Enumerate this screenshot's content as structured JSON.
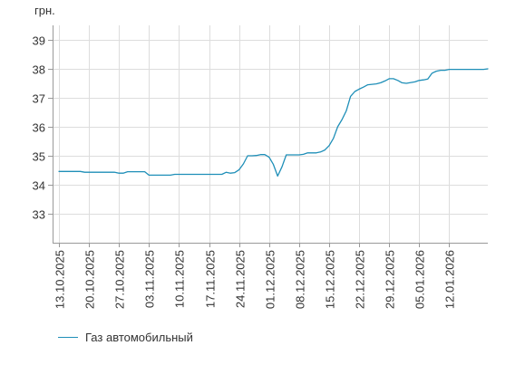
{
  "chart_data": {
    "type": "line",
    "unit_label": "грн.",
    "ylim": [
      32,
      39.5
    ],
    "yticks": [
      33,
      34,
      35,
      36,
      37,
      38,
      39
    ],
    "grid": true,
    "legend_position": "bottom-left",
    "series": [
      {
        "name": "Газ автомобильный",
        "color": "#1f8fb8",
        "points": [
          [
            "2025-10-13",
            34.46
          ],
          [
            "2025-10-18",
            34.46
          ],
          [
            "2025-10-19",
            34.43
          ],
          [
            "2025-10-26",
            34.43
          ],
          [
            "2025-10-27",
            34.4
          ],
          [
            "2025-10-28",
            34.4
          ],
          [
            "2025-10-29",
            34.45
          ],
          [
            "2025-11-02",
            34.45
          ],
          [
            "2025-11-03",
            34.33
          ],
          [
            "2025-11-08",
            34.33
          ],
          [
            "2025-11-09",
            34.36
          ],
          [
            "2025-11-20",
            34.36
          ],
          [
            "2025-11-21",
            34.43
          ],
          [
            "2025-11-22",
            34.4
          ],
          [
            "2025-11-23",
            34.42
          ],
          [
            "2025-11-24",
            34.52
          ],
          [
            "2025-11-25",
            34.72
          ],
          [
            "2025-11-26",
            35.0
          ],
          [
            "2025-11-27",
            35.0
          ],
          [
            "2025-11-28",
            35.01
          ],
          [
            "2025-11-29",
            35.04
          ],
          [
            "2025-11-30",
            35.04
          ],
          [
            "2025-12-01",
            34.95
          ],
          [
            "2025-12-02",
            34.7
          ],
          [
            "2025-12-03",
            34.3
          ],
          [
            "2025-12-04",
            34.62
          ],
          [
            "2025-12-05",
            35.03
          ],
          [
            "2025-12-08",
            35.03
          ],
          [
            "2025-12-09",
            35.05
          ],
          [
            "2025-12-10",
            35.1
          ],
          [
            "2025-12-12",
            35.1
          ],
          [
            "2025-12-13",
            35.13
          ],
          [
            "2025-12-14",
            35.2
          ],
          [
            "2025-12-15",
            35.35
          ],
          [
            "2025-12-16",
            35.6
          ],
          [
            "2025-12-17",
            36.0
          ],
          [
            "2025-12-18",
            36.25
          ],
          [
            "2025-12-19",
            36.55
          ],
          [
            "2025-12-20",
            37.05
          ],
          [
            "2025-12-21",
            37.22
          ],
          [
            "2025-12-22",
            37.3
          ],
          [
            "2025-12-23",
            37.37
          ],
          [
            "2025-12-24",
            37.45
          ],
          [
            "2025-12-26",
            37.48
          ],
          [
            "2025-12-27",
            37.52
          ],
          [
            "2025-12-28",
            37.58
          ],
          [
            "2025-12-29",
            37.66
          ],
          [
            "2025-12-30",
            37.66
          ],
          [
            "2025-12-31",
            37.6
          ],
          [
            "2026-01-01",
            37.52
          ],
          [
            "2026-01-02",
            37.5
          ],
          [
            "2026-01-04",
            37.55
          ],
          [
            "2026-01-05",
            37.6
          ],
          [
            "2026-01-06",
            37.62
          ],
          [
            "2026-01-07",
            37.65
          ],
          [
            "2026-01-08",
            37.85
          ],
          [
            "2026-01-09",
            37.92
          ],
          [
            "2026-01-10",
            37.95
          ],
          [
            "2026-01-11",
            37.95
          ],
          [
            "2026-01-12",
            37.98
          ],
          [
            "2026-01-20",
            37.98
          ],
          [
            "2026-01-21",
            38.0
          ]
        ]
      }
    ],
    "x_tick_labels": [
      "13.10.2025",
      "20.10.2025",
      "27.10.2025",
      "03.11.2025",
      "10.11.2025",
      "17.11.2025",
      "24.11.2025",
      "01.12.2025",
      "08.12.2025",
      "15.12.2025",
      "22.12.2025",
      "29.12.2025",
      "05.01.2026",
      "12.01.2026"
    ],
    "x_tick_dates": [
      "2025-10-13",
      "2025-10-20",
      "2025-10-27",
      "2025-11-03",
      "2025-11-10",
      "2025-11-17",
      "2025-11-24",
      "2025-12-01",
      "2025-12-08",
      "2025-12-15",
      "2025-12-22",
      "2025-12-29",
      "2026-01-05",
      "2026-01-12"
    ],
    "x_range": [
      "2025-10-13",
      "2026-01-21"
    ]
  }
}
